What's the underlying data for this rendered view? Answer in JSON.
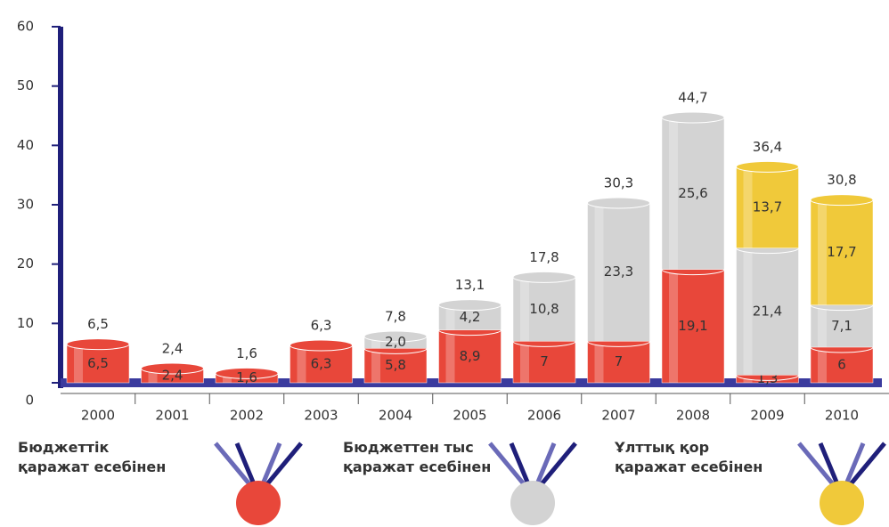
{
  "chart_data": {
    "type": "stacked-bar",
    "categories": [
      "2000",
      "2001",
      "2002",
      "2003",
      "2004",
      "2005",
      "2006",
      "2007",
      "2008",
      "2009",
      "2010"
    ],
    "series": [
      {
        "name": "Бюджеттік қаражат есебінен",
        "color": "#e8473a",
        "values": [
          6.5,
          2.4,
          1.6,
          6.3,
          5.8,
          8.9,
          7,
          7,
          19.1,
          1.3,
          6
        ],
        "value_labels": [
          "6,5",
          "2,4",
          "1,6",
          "6,3",
          "5,8",
          "8,9",
          "7",
          "7",
          "19,1",
          "1,3",
          "6"
        ]
      },
      {
        "name": "Бюджеттен тыс қаражат есебінен",
        "color": "#d3d3d3",
        "values": [
          null,
          null,
          null,
          null,
          2.0,
          4.2,
          10.8,
          23.3,
          25.6,
          21.4,
          7.1
        ],
        "value_labels": [
          null,
          null,
          null,
          null,
          "2,0",
          "4,2",
          "10,8",
          "23,3",
          "25,6",
          "21,4",
          "7,1"
        ]
      },
      {
        "name": "Ұлттық қор қаражат есебінен",
        "color": "#f0c93a",
        "values": [
          null,
          null,
          null,
          null,
          null,
          null,
          null,
          null,
          null,
          13.7,
          17.7
        ],
        "value_labels": [
          null,
          null,
          null,
          null,
          null,
          null,
          null,
          null,
          null,
          "13,7",
          "17,7"
        ]
      }
    ],
    "totals": {
      "values": [
        6.5,
        2.4,
        1.6,
        6.3,
        7.8,
        13.1,
        17.8,
        30.3,
        44.7,
        36.4,
        30.8
      ],
      "value_labels": [
        "6,5",
        "2,4",
        "1,6",
        "6,3",
        "7,8",
        "13,1",
        "17,8",
        "30,3",
        "44,7",
        "36,4",
        "30,8"
      ]
    },
    "ylim": [
      0,
      60
    ],
    "yticks": [
      0,
      10,
      20,
      30,
      40,
      50,
      60
    ]
  }
}
